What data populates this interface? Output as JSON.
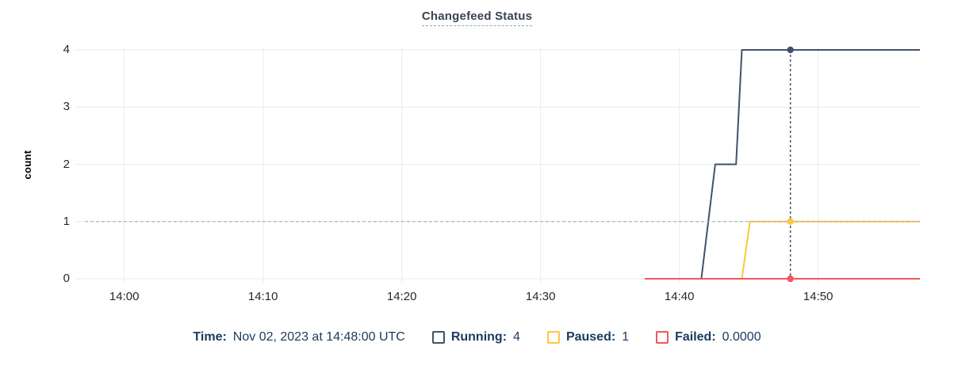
{
  "title": "Changefeed Status",
  "chart_data": {
    "type": "line",
    "title": "Changefeed Status",
    "xlabel": "",
    "ylabel": "count",
    "ylim": [
      0,
      4
    ],
    "grid": true,
    "x_ticks": [
      "14:00",
      "14:10",
      "14:20",
      "14:30",
      "14:40",
      "14:50"
    ],
    "y_ticks_top_down": [
      "4",
      "3",
      "2",
      "1",
      "0"
    ],
    "x_range": [
      "13:56:30",
      "14:57:20"
    ],
    "threshold_line": {
      "value": 1,
      "style": "dashed"
    },
    "series": [
      {
        "name": "Running",
        "color": "#42526b",
        "points": [
          [
            "14:37:30",
            0
          ],
          [
            "14:41:35",
            0
          ],
          [
            "14:42:35",
            2
          ],
          [
            "14:44:05",
            2
          ],
          [
            "14:44:30",
            4
          ],
          [
            "14:57:20",
            4
          ]
        ]
      },
      {
        "name": "Paused",
        "color": "#ffc53d",
        "points": [
          [
            "14:37:30",
            0
          ],
          [
            "14:44:30",
            0
          ],
          [
            "14:45:05",
            1
          ],
          [
            "14:57:20",
            1
          ]
        ]
      },
      {
        "name": "Failed",
        "color": "#f2555c",
        "points": [
          [
            "14:37:30",
            0
          ],
          [
            "14:57:20",
            0
          ]
        ]
      }
    ],
    "hover": {
      "time": "14:48:00",
      "values": {
        "Running": 4,
        "Paused": 1,
        "Failed": 0
      }
    },
    "legend_position": "bottom"
  },
  "legend": {
    "time_label": "Time:",
    "time_value": "Nov 02, 2023 at 14:48:00 UTC",
    "items": [
      {
        "label": "Running:",
        "value": "4",
        "color": "#42526b"
      },
      {
        "label": "Paused:",
        "value": "1",
        "color": "#ffc53d"
      },
      {
        "label": "Failed:",
        "value": "0.0000",
        "color": "#f2555c"
      }
    ]
  },
  "colors": {
    "running": "#42526b",
    "paused": "#ffc53d",
    "failed": "#f2555c",
    "title": "#394455",
    "legend_text": "#1b3a5f",
    "grid": "#e9eaeb",
    "threshold_dash": "#a9b6c0"
  }
}
